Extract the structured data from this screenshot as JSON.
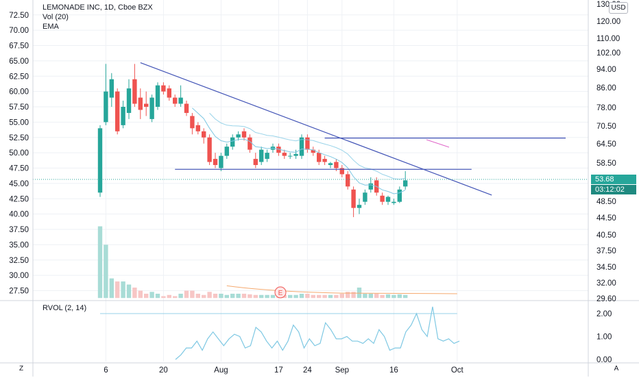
{
  "header": {
    "symbol_line": "LEMONADE INC, 1D, Cboe BZX",
    "volume_indicator": "Vol (20)",
    "ema_indicator": "EMA"
  },
  "rvol": {
    "label": "RVOL (2, 14)"
  },
  "currency_badge": "USD",
  "price_label": "53.68",
  "countdown_label": "03:12:02",
  "corner_buttons": {
    "left": "Z",
    "right": "A"
  },
  "colors": {
    "up": "#26a69a",
    "down": "#ef5350",
    "up_volume": "#a8dcd6",
    "down_volume": "#f7c6c5",
    "trendline": "#3f51b5",
    "ema": "#7ec8e3",
    "rvol_line": "#7ec8e3",
    "grid": "#eef1f5"
  },
  "chart_data": {
    "type": "candlestick",
    "x_ticks": [
      {
        "label": "6",
        "index": 1
      },
      {
        "label": "20",
        "index": 11
      },
      {
        "label": "Aug",
        "index": 21
      },
      {
        "label": "17",
        "index": 31
      },
      {
        "label": "24",
        "index": 36
      },
      {
        "label": "Sep",
        "index": 42
      },
      {
        "label": "16",
        "index": 51
      },
      {
        "label": "Oct",
        "index": 62
      }
    ],
    "left_axis_ticks": [
      "27.50",
      "30.00",
      "32.50",
      "35.00",
      "37.50",
      "40.00",
      "42.50",
      "45.00",
      "47.50",
      "50.00",
      "52.50",
      "55.00",
      "57.50",
      "60.00",
      "62.50",
      "65.00",
      "67.50",
      "70.00",
      "72.50"
    ],
    "right_axis_ticks": [
      "29.60",
      "32.00",
      "34.50",
      "37.50",
      "40.50",
      "44.50",
      "48.50",
      "53.68",
      "58.50",
      "64.50",
      "70.50",
      "78.00",
      "86.00",
      "94.00",
      "102.00",
      "110.00",
      "120.00",
      "130.00"
    ],
    "rvol_ticks": [
      "0.00",
      "1.00",
      "2.00"
    ],
    "candles": [
      {
        "o": 43.5,
        "h": 54.5,
        "l": 42.8,
        "c": 54.0
      },
      {
        "o": 55.0,
        "h": 64.5,
        "l": 54.5,
        "c": 60.0
      },
      {
        "o": 59.0,
        "h": 63.0,
        "l": 57.5,
        "c": 62.0
      },
      {
        "o": 60.0,
        "h": 60.5,
        "l": 53.0,
        "c": 53.5
      },
      {
        "o": 54.5,
        "h": 58.5,
        "l": 54.0,
        "c": 57.5
      },
      {
        "o": 56.5,
        "h": 62.0,
        "l": 55.5,
        "c": 60.5
      },
      {
        "o": 62.0,
        "h": 64.5,
        "l": 57.5,
        "c": 58.0
      },
      {
        "o": 59.0,
        "h": 60.5,
        "l": 55.5,
        "c": 57.0
      },
      {
        "o": 58.0,
        "h": 60.0,
        "l": 56.0,
        "c": 57.5
      },
      {
        "o": 55.5,
        "h": 59.5,
        "l": 55.0,
        "c": 59.0
      },
      {
        "o": 57.5,
        "h": 61.5,
        "l": 57.0,
        "c": 61.0
      },
      {
        "o": 61.0,
        "h": 61.5,
        "l": 59.5,
        "c": 60.0
      },
      {
        "o": 60.5,
        "h": 61.0,
        "l": 58.5,
        "c": 59.0
      },
      {
        "o": 59.0,
        "h": 59.5,
        "l": 57.5,
        "c": 58.0
      },
      {
        "o": 58.0,
        "h": 61.0,
        "l": 57.5,
        "c": 59.0
      },
      {
        "o": 58.0,
        "h": 58.5,
        "l": 56.0,
        "c": 56.5
      },
      {
        "o": 56.0,
        "h": 56.5,
        "l": 53.0,
        "c": 54.0
      },
      {
        "o": 54.5,
        "h": 55.0,
        "l": 53.0,
        "c": 53.5
      },
      {
        "o": 53.5,
        "h": 54.0,
        "l": 51.5,
        "c": 52.5
      },
      {
        "o": 52.5,
        "h": 53.0,
        "l": 48.0,
        "c": 48.5
      },
      {
        "o": 49.0,
        "h": 50.0,
        "l": 47.5,
        "c": 48.0
      },
      {
        "o": 47.5,
        "h": 50.0,
        "l": 47.0,
        "c": 49.5
      },
      {
        "o": 49.5,
        "h": 51.5,
        "l": 49.0,
        "c": 51.0
      },
      {
        "o": 51.0,
        "h": 53.0,
        "l": 50.5,
        "c": 52.5
      },
      {
        "o": 52.5,
        "h": 53.5,
        "l": 52.0,
        "c": 53.0
      },
      {
        "o": 53.5,
        "h": 54.0,
        "l": 52.0,
        "c": 52.5
      },
      {
        "o": 52.5,
        "h": 53.0,
        "l": 50.0,
        "c": 50.5
      },
      {
        "o": 49.0,
        "h": 50.0,
        "l": 47.5,
        "c": 48.0
      },
      {
        "o": 48.5,
        "h": 51.0,
        "l": 48.0,
        "c": 50.5
      },
      {
        "o": 49.0,
        "h": 50.5,
        "l": 48.5,
        "c": 50.0
      },
      {
        "o": 50.5,
        "h": 51.5,
        "l": 50.0,
        "c": 51.0
      },
      {
        "o": 51.0,
        "h": 51.5,
        "l": 49.5,
        "c": 50.0
      },
      {
        "o": 50.0,
        "h": 50.5,
        "l": 49.0,
        "c": 49.5
      },
      {
        "o": 49.5,
        "h": 50.0,
        "l": 49.0,
        "c": 49.5
      },
      {
        "o": 49.5,
        "h": 50.5,
        "l": 49.0,
        "c": 49.8
      },
      {
        "o": 49.5,
        "h": 53.0,
        "l": 49.0,
        "c": 52.5
      },
      {
        "o": 52.5,
        "h": 53.0,
        "l": 50.0,
        "c": 50.5
      },
      {
        "o": 50.5,
        "h": 51.0,
        "l": 49.5,
        "c": 50.0
      },
      {
        "o": 50.0,
        "h": 50.5,
        "l": 48.0,
        "c": 48.5
      },
      {
        "o": 49.0,
        "h": 49.5,
        "l": 48.0,
        "c": 48.5
      },
      {
        "o": 48.0,
        "h": 48.5,
        "l": 47.5,
        "c": 48.3
      },
      {
        "o": 48.5,
        "h": 49.0,
        "l": 47.0,
        "c": 47.5
      },
      {
        "o": 47.5,
        "h": 48.0,
        "l": 46.0,
        "c": 46.5
      },
      {
        "o": 46.5,
        "h": 47.0,
        "l": 44.0,
        "c": 44.5
      },
      {
        "o": 44.0,
        "h": 44.5,
        "l": 39.5,
        "c": 41.0
      },
      {
        "o": 41.0,
        "h": 42.5,
        "l": 40.0,
        "c": 41.5
      },
      {
        "o": 42.0,
        "h": 44.0,
        "l": 41.5,
        "c": 43.5
      },
      {
        "o": 44.0,
        "h": 46.0,
        "l": 43.5,
        "c": 45.0
      },
      {
        "o": 45.5,
        "h": 46.0,
        "l": 43.0,
        "c": 43.5
      },
      {
        "o": 43.0,
        "h": 43.5,
        "l": 41.5,
        "c": 42.0
      },
      {
        "o": 42.0,
        "h": 43.0,
        "l": 41.5,
        "c": 42.8
      },
      {
        "o": 41.8,
        "h": 42.5,
        "l": 41.5,
        "c": 42.0
      },
      {
        "o": 42.0,
        "h": 44.5,
        "l": 41.8,
        "c": 44.0
      },
      {
        "o": 44.5,
        "h": 47.0,
        "l": 44.0,
        "c": 45.5
      }
    ],
    "volume": [
      38.0,
      35.0,
      29.5,
      29.0,
      29.0,
      28.5,
      28.0,
      27.5,
      27.0,
      27.3,
      27.0,
      26.6,
      26.8,
      26.6,
      27.0,
      27.5,
      27.5,
      27.0,
      26.8,
      27.3,
      27.0,
      27.0,
      26.8,
      27.0,
      27.0,
      27.0,
      26.9,
      26.8,
      26.8,
      26.8,
      26.8,
      27.0,
      26.8,
      26.8,
      26.8,
      27.0,
      27.0,
      26.8,
      26.8,
      26.8,
      26.8,
      26.8,
      27.0,
      27.3,
      27.3,
      28.0,
      27.0,
      27.0,
      27.0,
      26.8,
      26.9,
      26.8,
      26.9,
      26.8
    ],
    "rvol_values": [
      0.0,
      0.2,
      0.5,
      0.5,
      0.8,
      0.4,
      0.9,
      1.2,
      0.9,
      0.6,
      0.9,
      1.1,
      1.0,
      0.5,
      0.6,
      1.4,
      1.2,
      0.8,
      0.5,
      0.8,
      0.4,
      0.8,
      1.5,
      1.2,
      0.5,
      0.9,
      0.6,
      0.7,
      1.6,
      1.3,
      0.9,
      0.9,
      1.0,
      0.8,
      0.8,
      0.7,
      0.9,
      0.7,
      1.3,
      1.0,
      0.4,
      0.5,
      0.5,
      1.2,
      1.5,
      2.0,
      1.3,
      1.0,
      2.3,
      0.9,
      0.8,
      0.9,
      0.7,
      0.8
    ]
  }
}
